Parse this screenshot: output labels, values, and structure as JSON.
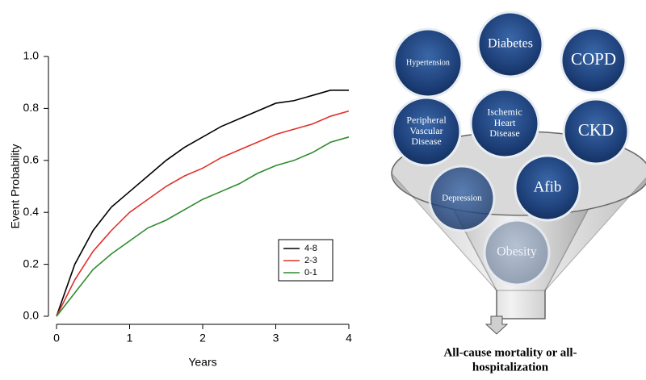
{
  "chart_data": {
    "type": "line",
    "x_label": "Years",
    "y_label": "Event Probability",
    "x": [
      0,
      0.25,
      0.5,
      0.75,
      1,
      1.25,
      1.5,
      1.75,
      2,
      2.25,
      2.5,
      2.75,
      3,
      3.25,
      3.5,
      3.75,
      4
    ],
    "series": [
      {
        "name": "4-8",
        "color": "#000000",
        "values": [
          0,
          0.2,
          0.33,
          0.42,
          0.48,
          0.54,
          0.6,
          0.65,
          0.69,
          0.73,
          0.76,
          0.79,
          0.82,
          0.83,
          0.85,
          0.87,
          0.87
        ]
      },
      {
        "name": "2-3",
        "color": "#e0302a",
        "values": [
          0,
          0.14,
          0.25,
          0.33,
          0.4,
          0.45,
          0.5,
          0.54,
          0.57,
          0.61,
          0.64,
          0.67,
          0.7,
          0.72,
          0.74,
          0.77,
          0.79
        ]
      },
      {
        "name": "0-1",
        "color": "#2e8b2e",
        "values": [
          0,
          0.09,
          0.18,
          0.24,
          0.29,
          0.34,
          0.37,
          0.41,
          0.45,
          0.48,
          0.51,
          0.55,
          0.58,
          0.6,
          0.63,
          0.67,
          0.69
        ]
      }
    ],
    "xlim": [
      0,
      4
    ],
    "xticks": [
      0,
      1,
      2,
      3,
      4
    ],
    "ylim": [
      0,
      1
    ],
    "yticks": [
      {
        "value": 0,
        "label": "0.0"
      },
      {
        "value": 0.2,
        "label": "0.2"
      },
      {
        "value": 0.4,
        "label": "0.4"
      },
      {
        "value": 0.6,
        "label": "0.6"
      },
      {
        "value": 0.8,
        "label": "0.8"
      },
      {
        "value": 1,
        "label": "1.0"
      }
    ],
    "legend": "bottom-right",
    "grid": false
  },
  "diagram": {
    "nodes": [
      {
        "lines": [
          "Hypertension"
        ]
      },
      {
        "lines": [
          "Diabetes"
        ]
      },
      {
        "lines": [
          "COPD"
        ]
      },
      {
        "lines": [
          "Peripheral",
          "Vascular",
          "Disease"
        ]
      },
      {
        "lines": [
          "Ischemic",
          "Heart",
          "Disease"
        ]
      },
      {
        "lines": [
          "CKD"
        ]
      },
      {
        "lines": [
          "Depression"
        ]
      },
      {
        "lines": [
          "Afib"
        ]
      },
      {
        "lines": [
          "Obesity"
        ]
      }
    ],
    "caption": [
      "All-cause mortality or all-",
      "hospitalization"
    ]
  }
}
